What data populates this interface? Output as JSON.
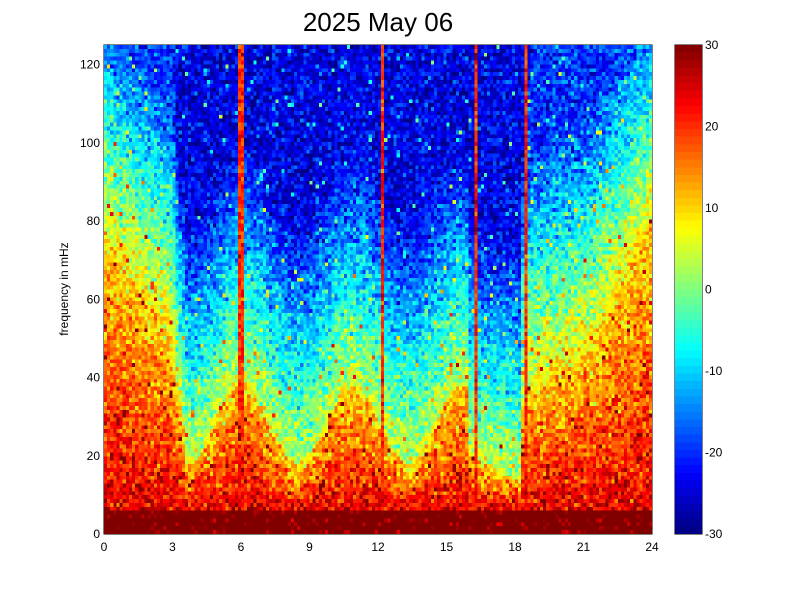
{
  "chart_data": {
    "type": "heatmap",
    "title": "2025 May 06",
    "xlabel": "",
    "ylabel": "frequency in mHz",
    "xlim": [
      0,
      24
    ],
    "ylim": [
      0,
      125
    ],
    "x_ticks": [
      0,
      3,
      6,
      9,
      12,
      15,
      18,
      21,
      24
    ],
    "y_ticks": [
      0,
      20,
      40,
      60,
      80,
      100,
      120
    ],
    "colorbar": {
      "range": [
        -30,
        30
      ],
      "ticks": [
        -30,
        -20,
        -10,
        0,
        10,
        20,
        30
      ],
      "colormap": "jet"
    },
    "grid": false,
    "description_of_values": "Spectral power (dB) vs. time of day (hours) and frequency (mHz). High power (~30) below ~10 mHz all day; broad elevated power (10–25) up to ~40–80 mHz in hours 0–3 and 21.5–24; low power (-15 to -25) above ~60 mHz during hours 3–18.5; narrow bright vertical streaks near hours 6.0, 12.2, 16.3 and 18.5.",
    "streaks_hours": [
      6.0,
      12.2,
      16.3,
      18.5
    ]
  }
}
